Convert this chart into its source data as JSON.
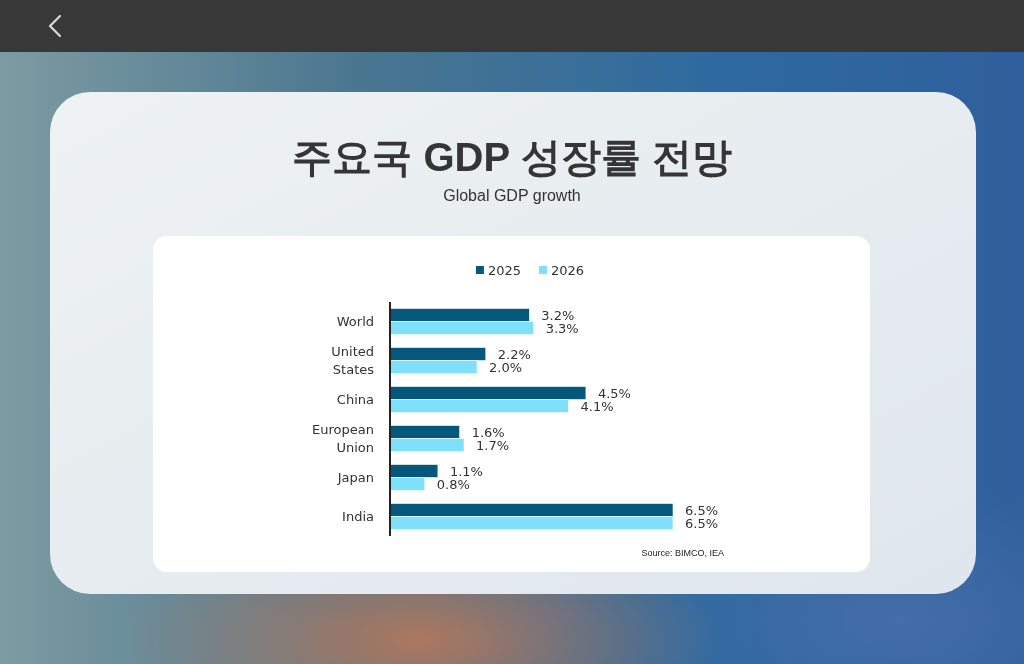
{
  "chart_data": {
    "type": "bar",
    "orientation": "horizontal",
    "title": "주요국 GDP 성장률 전망",
    "subtitle": "Global GDP growth",
    "categories": [
      "World",
      "United States",
      "China",
      "European Union",
      "Japan",
      "India"
    ],
    "series": [
      {
        "name": "2025",
        "color": "#05587b",
        "values": [
          3.2,
          2.2,
          4.5,
          1.6,
          1.1,
          6.5
        ],
        "value_labels": [
          "3.2%",
          "2.2%",
          "4.5%",
          "1.6%",
          "1.1%",
          "6.5%"
        ]
      },
      {
        "name": "2026",
        "color": "#7fe0fc",
        "values": [
          3.3,
          2.0,
          4.1,
          1.7,
          0.8,
          6.5
        ],
        "value_labels": [
          "3.3%",
          "2.0%",
          "4.1%",
          "1.7%",
          "0.8%",
          "6.5%"
        ]
      }
    ],
    "legend": "top",
    "tick_labels": "y",
    "annotations": [
      "Source: BIMCO, IEA"
    ]
  }
}
